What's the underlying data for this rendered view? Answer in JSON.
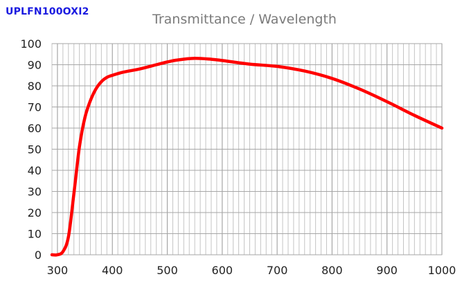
{
  "header": {
    "model_label": "UPLFN100OXI2"
  },
  "chart_data": {
    "type": "line",
    "title": "Transmittance / Wavelength",
    "xlabel": "",
    "ylabel": "",
    "xlim": [
      290,
      1000
    ],
    "ylim": [
      0,
      100
    ],
    "x_ticks": [
      300,
      400,
      500,
      600,
      700,
      800,
      900,
      1000
    ],
    "y_ticks": [
      0,
      10,
      20,
      30,
      40,
      50,
      60,
      70,
      80,
      90,
      100
    ],
    "x_minor_step": 10,
    "grid": true,
    "legend": "none",
    "series": [
      {
        "name": "UPLFN100OXI2",
        "color": "#ff0000",
        "x": [
          290,
          300,
          310,
          320,
          330,
          340,
          350,
          360,
          370,
          380,
          390,
          400,
          420,
          450,
          480,
          500,
          520,
          550,
          580,
          600,
          650,
          700,
          750,
          800,
          850,
          900,
          950,
          1000
        ],
        "y": [
          0,
          0,
          1.5,
          8.5,
          29,
          51,
          65,
          73,
          78.5,
          82,
          84,
          85,
          86.5,
          88,
          90,
          91.3,
          92.3,
          93,
          92.6,
          92,
          90.3,
          89.2,
          87,
          83.5,
          78.5,
          72.5,
          66,
          60
        ]
      }
    ]
  }
}
